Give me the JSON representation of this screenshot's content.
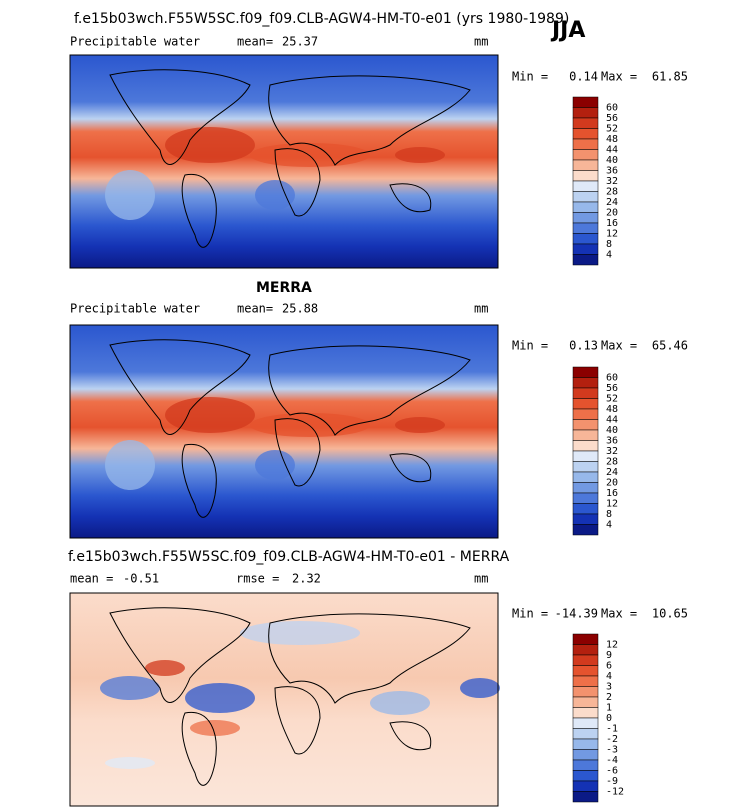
{
  "header": {
    "title": "f.e15b03wch.F55W5SC.f09_f09.CLB-AGW4-HM-T0-e01 (yrs 1980-1989)",
    "season": "JJA"
  },
  "panels": [
    {
      "variable": "Precipitable water",
      "mean_label": "mean=",
      "mean": 25.37,
      "units": "mm",
      "min_label": "Min =",
      "min": 0.14,
      "max_label": "Max =",
      "max": 61.85,
      "levels": [
        60,
        56,
        52,
        48,
        44,
        40,
        36,
        32,
        28,
        24,
        20,
        16,
        12,
        8,
        4
      ],
      "colors": [
        "#8b0000",
        "#b3200f",
        "#d23a1e",
        "#e5532e",
        "#ee7049",
        "#f3926e",
        "#f7b698",
        "#fbdccb",
        "#dfe9f8",
        "#bcd2f1",
        "#97b8ea",
        "#7299e2",
        "#4d78da",
        "#2b57cf",
        "#1432b4",
        "#0b1a86"
      ]
    },
    {
      "title": "MERRA",
      "variable": "Precipitable water",
      "mean_label": "mean=",
      "mean": 25.88,
      "units": "mm",
      "min_label": "Min =",
      "min": 0.13,
      "max_label": "Max =",
      "max": 65.46,
      "levels": [
        60,
        56,
        52,
        48,
        44,
        40,
        36,
        32,
        28,
        24,
        20,
        16,
        12,
        8,
        4
      ],
      "colors": [
        "#8b0000",
        "#b3200f",
        "#d23a1e",
        "#e5532e",
        "#ee7049",
        "#f3926e",
        "#f7b698",
        "#fbdccb",
        "#dfe9f8",
        "#bcd2f1",
        "#97b8ea",
        "#7299e2",
        "#4d78da",
        "#2b57cf",
        "#1432b4",
        "#0b1a86"
      ]
    },
    {
      "title": "f.e15b03wch.F55W5SC.f09_f09.CLB-AGW4-HM-T0-e01 - MERRA",
      "mean_label": "mean =",
      "mean": -0.51,
      "rmse_label": "rmse =",
      "rmse": 2.32,
      "units": "mm",
      "min_label": "Min =",
      "min": -14.39,
      "max_label": "Max =",
      "max": 10.65,
      "levels": [
        12,
        9,
        6,
        4,
        3,
        2,
        1,
        0,
        -1,
        -2,
        -3,
        -4,
        -6,
        -9,
        -12
      ],
      "colors": [
        "#8b0000",
        "#b3200f",
        "#d23a1e",
        "#e5532e",
        "#ee7049",
        "#f3926e",
        "#f7b698",
        "#fbdccb",
        "#dfe9f8",
        "#bcd2f1",
        "#97b8ea",
        "#7299e2",
        "#4d78da",
        "#2b57cf",
        "#1432b4",
        "#0b1a86"
      ]
    }
  ]
}
